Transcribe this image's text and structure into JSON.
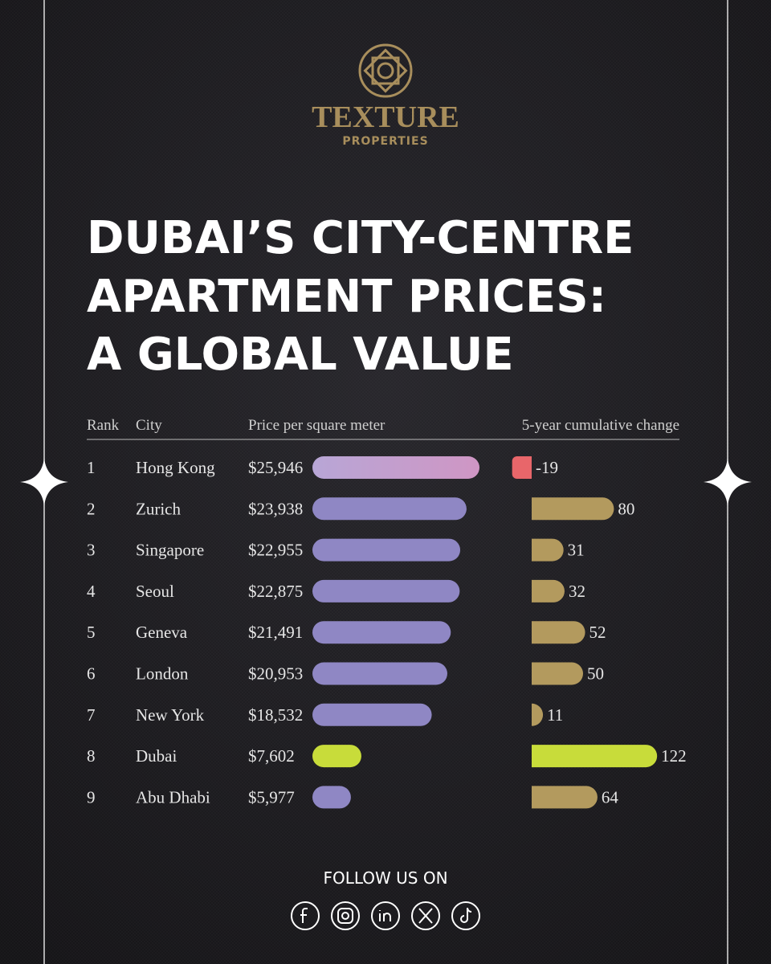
{
  "brand": {
    "name": "TEXTURE",
    "tagline": "PROPERTIES"
  },
  "title": [
    "DUBAI’S CITY-CENTRE",
    "APARTMENT PRICES:",
    "A GLOBAL VALUE"
  ],
  "table": {
    "headers": [
      "Rank",
      "City",
      "Price per square meter",
      "5-year cumulative change"
    ],
    "rows": [
      {
        "rank": 1,
        "city": "Hong Kong",
        "price": 25946,
        "price_label": "$25,946",
        "change": -19,
        "price_color": "#c79ac8",
        "change_color": "#e8666a"
      },
      {
        "rank": 2,
        "city": "Zurich",
        "price": 23938,
        "price_label": "$23,938",
        "change": 80,
        "price_color": "#8f87c4",
        "change_color": "#b39a5e"
      },
      {
        "rank": 3,
        "city": "Singapore",
        "price": 22955,
        "price_label": "$22,955",
        "change": 31,
        "price_color": "#8f87c4",
        "change_color": "#b39a5e"
      },
      {
        "rank": 4,
        "city": "Seoul",
        "price": 22875,
        "price_label": "$22,875",
        "change": 32,
        "price_color": "#8f87c4",
        "change_color": "#b39a5e"
      },
      {
        "rank": 5,
        "city": "Geneva",
        "price": 21491,
        "price_label": "$21,491",
        "change": 52,
        "price_color": "#8f87c4",
        "change_color": "#b39a5e"
      },
      {
        "rank": 6,
        "city": "London",
        "price": 20953,
        "price_label": "$20,953",
        "change": 50,
        "price_color": "#8f87c4",
        "change_color": "#b39a5e"
      },
      {
        "rank": 7,
        "city": "New York",
        "price": 18532,
        "price_label": "$18,532",
        "change": 11,
        "price_color": "#8f87c4",
        "change_color": "#b39a5e"
      },
      {
        "rank": 8,
        "city": "Dubai",
        "price": 7602,
        "price_label": "$7,602",
        "change": 122,
        "price_color": "#c8dc3a",
        "change_color": "#c8dc3a"
      },
      {
        "rank": 9,
        "city": "Abu Dhabi",
        "price": 5977,
        "price_label": "$5,977",
        "change": 64,
        "price_color": "#8f87c4",
        "change_color": "#b39a5e"
      }
    ]
  },
  "footer": {
    "follow": "FOLLOW US ON"
  }
}
